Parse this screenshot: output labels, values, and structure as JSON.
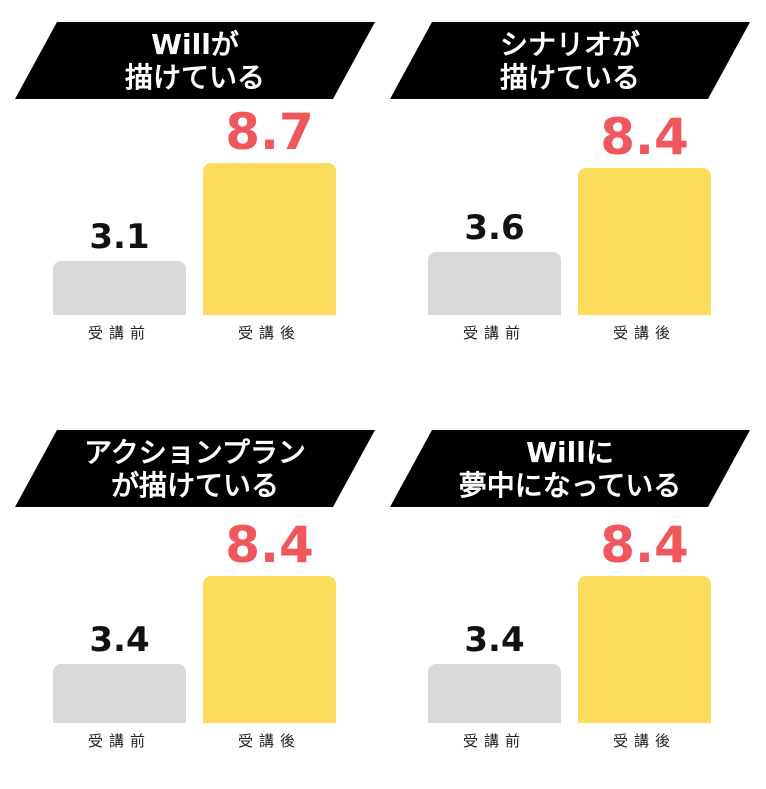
{
  "chart_data": [
    {
      "type": "bar",
      "title_lines": [
        "Willが",
        "描けている"
      ],
      "categories": [
        "受講前",
        "受講後"
      ],
      "values": [
        3.1,
        8.7
      ],
      "value_labels": [
        "3.1",
        "8.7"
      ],
      "ylim": [
        0,
        10
      ],
      "colors": [
        "#d9d9d9",
        "#fbdc5c"
      ],
      "label_colors": [
        "#111111",
        "#f0575d"
      ]
    },
    {
      "type": "bar",
      "title_lines": [
        "シナリオが",
        "描けている"
      ],
      "categories": [
        "受講前",
        "受講後"
      ],
      "values": [
        3.6,
        8.4
      ],
      "value_labels": [
        "3.6",
        "8.4"
      ],
      "ylim": [
        0,
        10
      ],
      "colors": [
        "#d9d9d9",
        "#fbdc5c"
      ],
      "label_colors": [
        "#111111",
        "#f0575d"
      ]
    },
    {
      "type": "bar",
      "title_lines": [
        "アクションプラン",
        "が描けている"
      ],
      "categories": [
        "受講前",
        "受講後"
      ],
      "values": [
        3.4,
        8.4
      ],
      "value_labels": [
        "3.4",
        "8.4"
      ],
      "ylim": [
        0,
        10
      ],
      "colors": [
        "#d9d9d9",
        "#fbdc5c"
      ],
      "label_colors": [
        "#111111",
        "#f0575d"
      ]
    },
    {
      "type": "bar",
      "title_lines": [
        "Willに",
        "夢中になっている"
      ],
      "categories": [
        "受講前",
        "受講後"
      ],
      "values": [
        3.4,
        8.4
      ],
      "value_labels": [
        "3.4",
        "8.4"
      ],
      "ylim": [
        0,
        10
      ],
      "colors": [
        "#d9d9d9",
        "#fbdc5c"
      ],
      "label_colors": [
        "#111111",
        "#f0575d"
      ]
    }
  ]
}
